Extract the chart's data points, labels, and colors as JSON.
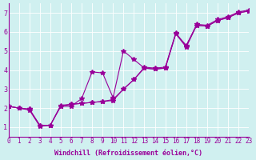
{
  "xlabel": "Windchill (Refroidissement éolien,°C)",
  "ylabel": "",
  "bg_color": "#d0f0f0",
  "line_color": "#990099",
  "xlim": [
    0,
    23
  ],
  "ylim": [
    0.5,
    7.5
  ],
  "xticks": [
    0,
    1,
    2,
    3,
    4,
    5,
    6,
    7,
    8,
    9,
    10,
    11,
    12,
    13,
    14,
    15,
    16,
    17,
    18,
    19,
    20,
    21,
    22,
    23
  ],
  "yticks": [
    1,
    2,
    3,
    4,
    5,
    6,
    7
  ],
  "series": [
    [
      [
        0,
        2.1
      ],
      [
        1,
        2.0
      ],
      [
        2,
        1.9
      ],
      [
        3,
        1.05
      ],
      [
        4,
        1.1
      ],
      [
        5,
        2.1
      ],
      [
        6,
        2.1
      ],
      [
        7,
        2.5
      ],
      [
        8,
        3.9
      ],
      [
        9,
        3.85
      ],
      [
        10,
        2.55
      ],
      [
        11,
        5.0
      ],
      [
        12,
        4.55
      ],
      [
        13,
        4.1
      ],
      [
        14,
        4.05
      ],
      [
        15,
        4.1
      ],
      [
        16,
        5.9
      ],
      [
        17,
        5.3
      ],
      [
        18,
        6.35
      ],
      [
        19,
        6.3
      ],
      [
        20,
        6.6
      ],
      [
        21,
        6.75
      ],
      [
        22,
        7.0
      ],
      [
        23,
        7.1
      ]
    ],
    [
      [
        0,
        2.1
      ],
      [
        1,
        2.0
      ],
      [
        2,
        1.95
      ],
      [
        3,
        1.1
      ],
      [
        4,
        1.1
      ],
      [
        5,
        2.15
      ],
      [
        6,
        2.2
      ],
      [
        7,
        2.25
      ],
      [
        8,
        2.3
      ],
      [
        9,
        2.35
      ],
      [
        10,
        2.4
      ],
      [
        11,
        3.0
      ],
      [
        12,
        3.5
      ],
      [
        13,
        4.1
      ],
      [
        14,
        4.05
      ],
      [
        15,
        4.1
      ],
      [
        16,
        5.9
      ],
      [
        17,
        5.2
      ],
      [
        18,
        6.35
      ],
      [
        19,
        6.3
      ],
      [
        20,
        6.6
      ],
      [
        21,
        6.75
      ],
      [
        22,
        7.0
      ],
      [
        23,
        7.1
      ]
    ],
    [
      [
        0,
        2.1
      ],
      [
        1,
        2.0
      ],
      [
        2,
        1.95
      ],
      [
        3,
        1.1
      ],
      [
        4,
        1.1
      ],
      [
        5,
        2.1
      ],
      [
        6,
        2.2
      ],
      [
        7,
        2.25
      ],
      [
        8,
        2.3
      ],
      [
        9,
        2.35
      ],
      [
        10,
        2.45
      ],
      [
        11,
        3.0
      ],
      [
        12,
        3.5
      ],
      [
        13,
        4.15
      ],
      [
        14,
        4.1
      ],
      [
        15,
        4.15
      ],
      [
        16,
        5.95
      ],
      [
        17,
        5.25
      ],
      [
        18,
        6.4
      ],
      [
        19,
        6.35
      ],
      [
        20,
        6.65
      ],
      [
        21,
        6.8
      ],
      [
        22,
        7.05
      ],
      [
        23,
        7.15
      ]
    ]
  ]
}
